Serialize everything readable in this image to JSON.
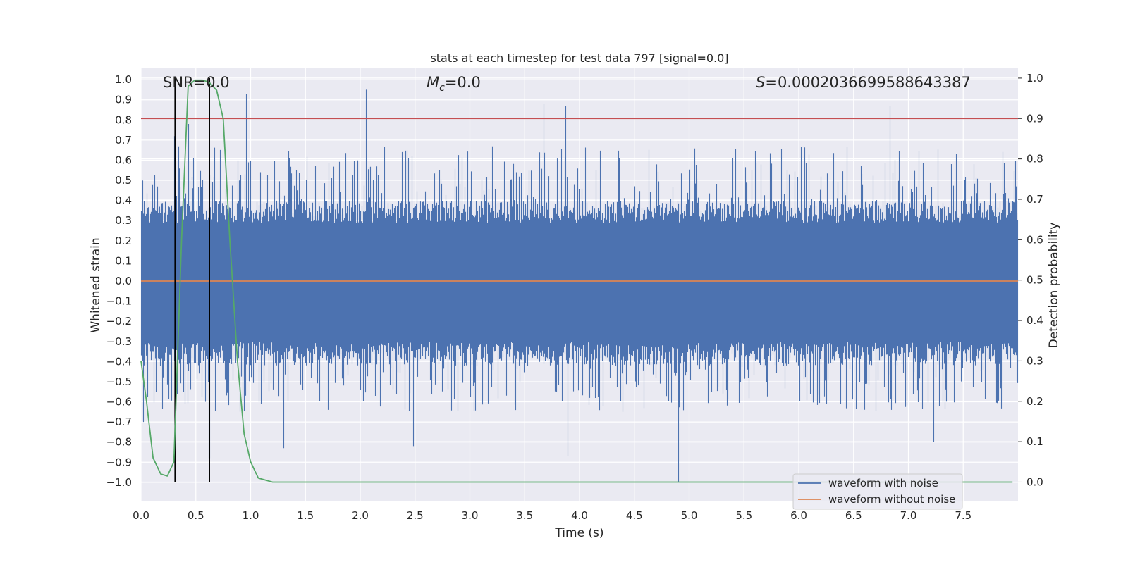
{
  "chart_data": {
    "type": "line",
    "title": "stats at each timestep for test data 797 [signal=0.0]",
    "xlabel": "Time (s)",
    "ylabel": "Whitened strain",
    "y2label": "Detection probability",
    "xlim": [
      0.0,
      8.0
    ],
    "ylim": [
      -1.095,
      1.06
    ],
    "y2lim": [
      -0.048,
      1.026
    ],
    "xticks": [
      0.0,
      0.5,
      1.0,
      1.5,
      2.0,
      2.5,
      3.0,
      3.5,
      4.0,
      4.5,
      5.0,
      5.5,
      6.0,
      6.5,
      7.0,
      7.5
    ],
    "xtick_labels": [
      "0.0",
      "0.5",
      "1.0",
      "1.5",
      "2.0",
      "2.5",
      "3.0",
      "3.5",
      "4.0",
      "4.5",
      "5.0",
      "5.5",
      "6.0",
      "6.5",
      "7.0",
      "7.5"
    ],
    "yticks": [
      1.0,
      0.9,
      0.8,
      0.7,
      0.6,
      0.5,
      0.4,
      0.3,
      0.2,
      0.1,
      0.0,
      -0.1,
      -0.2,
      -0.3,
      -0.4,
      -0.5,
      -0.6,
      -0.7,
      -0.8,
      -0.9,
      -1.0
    ],
    "ytick_labels": [
      "1.0",
      "0.9",
      "0.8",
      "0.7",
      "0.6",
      "0.5",
      "0.4",
      "0.3",
      "0.2",
      "0.1",
      "0.0",
      "−0.1",
      "−0.2",
      "−0.3",
      "−0.4",
      "−0.5",
      "−0.6",
      "−0.7",
      "−0.8",
      "−0.9",
      "−1.0"
    ],
    "y2ticks": [
      1.0,
      0.9,
      0.8,
      0.7,
      0.6,
      0.5,
      0.4,
      0.3,
      0.2,
      0.1,
      0.0
    ],
    "y2tick_labels": [
      "1.0",
      "0.9",
      "0.8",
      "0.7",
      "0.6",
      "0.5",
      "0.4",
      "0.3",
      "0.2",
      "0.1",
      "0.0"
    ],
    "grid": true,
    "legend_position": "lower-right",
    "annotations": {
      "snr": "SNR=0.0",
      "mc_symbol": "M",
      "mc_subscript": "c",
      "mc_value": "=0.0",
      "s_symbol": "S",
      "s_value": "=0.0002036699588643387"
    },
    "vertical_markers_x": [
      0.31,
      0.625
    ],
    "threshold_y2": 0.9,
    "series": [
      {
        "name": "waveform with noise",
        "color": "#4c72b0",
        "axis": "left",
        "style": "dense-noise",
        "sample_rate_hz": 2048,
        "duration_s": 8.0,
        "bulk_range": [
          -0.42,
          0.4
        ],
        "extremes": [
          {
            "x": 0.02,
            "y": -0.7
          },
          {
            "x": 0.3,
            "y": 0.72
          },
          {
            "x": 0.43,
            "y": 0.78
          },
          {
            "x": 0.62,
            "y": -0.88
          },
          {
            "x": 0.96,
            "y": 0.93
          },
          {
            "x": 1.3,
            "y": -0.83
          },
          {
            "x": 2.05,
            "y": 0.95
          },
          {
            "x": 2.48,
            "y": -0.82
          },
          {
            "x": 3.67,
            "y": 0.88
          },
          {
            "x": 3.87,
            "y": 0.87
          },
          {
            "x": 3.89,
            "y": -0.87
          },
          {
            "x": 4.9,
            "y": -1.0
          },
          {
            "x": 6.83,
            "y": 0.87
          },
          {
            "x": 7.23,
            "y": -0.8
          }
        ]
      },
      {
        "name": "waveform without noise",
        "color": "#dd8452",
        "axis": "left",
        "x": [
          0.0,
          8.0
        ],
        "y": [
          0.0,
          0.0
        ]
      },
      {
        "name": "detection probability",
        "color": "#55a868",
        "axis": "right",
        "x": [
          0.0,
          0.05,
          0.11,
          0.18,
          0.24,
          0.3,
          0.37,
          0.43,
          0.49,
          0.56,
          0.62,
          0.69,
          0.75,
          0.81,
          0.88,
          0.94,
          1.0,
          1.07,
          1.2,
          2.0,
          3.0,
          4.0,
          5.0,
          6.0,
          7.0,
          7.95
        ],
        "y": [
          0.3,
          0.2,
          0.06,
          0.02,
          0.015,
          0.05,
          0.6,
          0.98,
          0.995,
          0.995,
          0.99,
          0.97,
          0.9,
          0.6,
          0.3,
          0.12,
          0.05,
          0.01,
          0.0,
          0.0,
          0.0,
          0.0,
          0.0,
          0.0,
          0.0,
          0.0
        ]
      }
    ],
    "colors": {
      "background": "#eaeaf2",
      "grid": "#ffffff",
      "threshold": "#c44e52",
      "marker": "#000000"
    }
  }
}
